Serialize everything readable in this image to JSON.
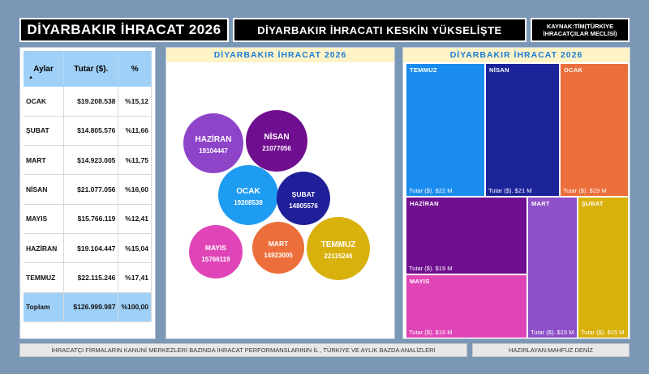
{
  "header": {
    "main_title": "DİYARBAKIR İHRACAT 2026",
    "sub_title": "DİYARBAKIR İHRACATI KESKİN YÜKSELİŞTE",
    "source": "KAYNAK:TİM(TÜRKİYE İHRACATÇILAR MECLİSİ)"
  },
  "table": {
    "headers": [
      "Aylar",
      "Tutar ($).",
      "%"
    ],
    "sort_indicator": "▲",
    "rows": [
      [
        "OCAK",
        "$19.208.538",
        "%15,12"
      ],
      [
        "ŞUBAT",
        "$14.805.576",
        "%11,66"
      ],
      [
        "MART",
        "$14.923.005",
        "%11,75"
      ],
      [
        "NİSAN",
        "$21.077.056",
        "%16,60"
      ],
      [
        "MAYIS",
        "$15.766.119",
        "%12,41"
      ],
      [
        "HAZİRAN",
        "$19.104.447",
        "%15,04"
      ],
      [
        "TEMMUZ",
        "$22.115.246",
        "%17,41"
      ]
    ],
    "total": [
      "Toplam",
      "$126.999.987",
      "%100,00"
    ]
  },
  "bubble_chart": {
    "title": "DİYARBAKIR İHRACAT 2026",
    "bubbles": [
      {
        "label": "HAZİRAN",
        "value": "19104447",
        "color": "#8e44c9"
      },
      {
        "label": "NİSAN",
        "value": "21077056",
        "color": "#6f0f8f"
      },
      {
        "label": "OCAK",
        "value": "19208538",
        "color": "#1e9cf2"
      },
      {
        "label": "ŞUBAT",
        "value": "14805576",
        "color": "#1f1f9a"
      },
      {
        "label": "MAYIS",
        "value": "15766119",
        "color": "#e045b7"
      },
      {
        "label": "MART",
        "value": "14923005",
        "color": "#ec6e3a"
      },
      {
        "label": "TEMMUZ",
        "value": "22115246",
        "color": "#d9b10c"
      }
    ]
  },
  "treemap": {
    "title": "DİYARBAKIR İHRACAT 2026",
    "tiles": [
      {
        "name": "TEMMUZ",
        "label": "Tutar ($). $22 M",
        "color": "#1a8cf0"
      },
      {
        "name": "NİSAN",
        "label": "Tutar ($). $21 M",
        "color": "#1c249a"
      },
      {
        "name": "OCAK",
        "label": "Tutar ($). $19 M",
        "color": "#ec6e3a"
      },
      {
        "name": "HAZİRAN",
        "label": "Tutar ($). $19 M",
        "color": "#6f0f8f"
      },
      {
        "name": "MART",
        "label": "Tutar ($). $15 M",
        "color": "#8e50c8"
      },
      {
        "name": "ŞUBAT",
        "label": "Tutar ($). $15 M",
        "color": "#d9b10c"
      },
      {
        "name": "MAYIS",
        "label": "Tutar ($). $16 M",
        "color": "#e045b7"
      }
    ]
  },
  "footer": {
    "left": "İHRACATÇI FİRMALARIN KANUNİ MERKEZLERİ BAZINDA  İHRACAT PERFORMANSLARININ İL , TÜRKİYE VE AYLIK BAZDA ANALİZLERİ",
    "right": "HAZIRLAYAN:MAHFUZ DENİZ"
  }
}
